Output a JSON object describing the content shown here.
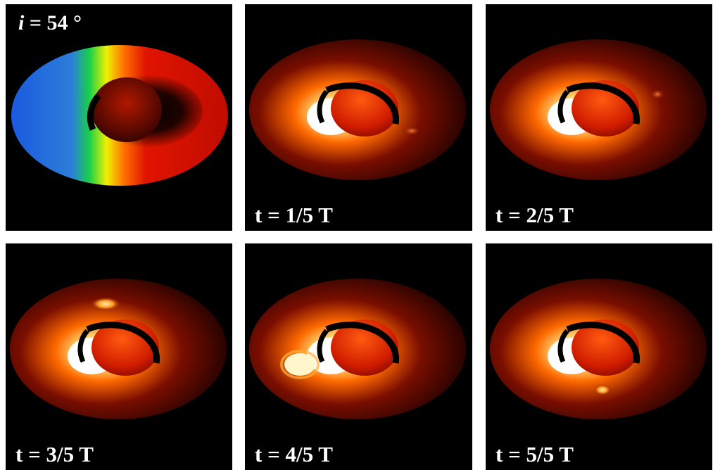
{
  "panels": [
    {
      "id": "p0",
      "kind": "velocity",
      "label_prefix": "i",
      "label_value": " = 54 °"
    },
    {
      "id": "p1",
      "kind": "intensity",
      "label": "t = 1/5 T",
      "spot": "lower-right"
    },
    {
      "id": "p2",
      "kind": "intensity",
      "label": "t = 2/5 T",
      "spot": "upper-right"
    },
    {
      "id": "p3",
      "kind": "intensity",
      "label": "t = 3/5 T",
      "spot": "upper-left"
    },
    {
      "id": "p4",
      "kind": "intensity",
      "label": "t = 4/5 T",
      "spot": "lower-left"
    },
    {
      "id": "p5",
      "kind": "intensity",
      "label": "t = 5/5 T",
      "spot": "bottom-right"
    }
  ],
  "colors": {
    "background": "#000000",
    "frame": "#ffffff",
    "hot": "#ffffff",
    "warm": "#ff8a00",
    "disk_red": "#a01000",
    "velocity_blue": "#1e64e0",
    "velocity_green": "#18d04a",
    "velocity_yellow": "#f8e800",
    "velocity_red": "#d81000"
  }
}
